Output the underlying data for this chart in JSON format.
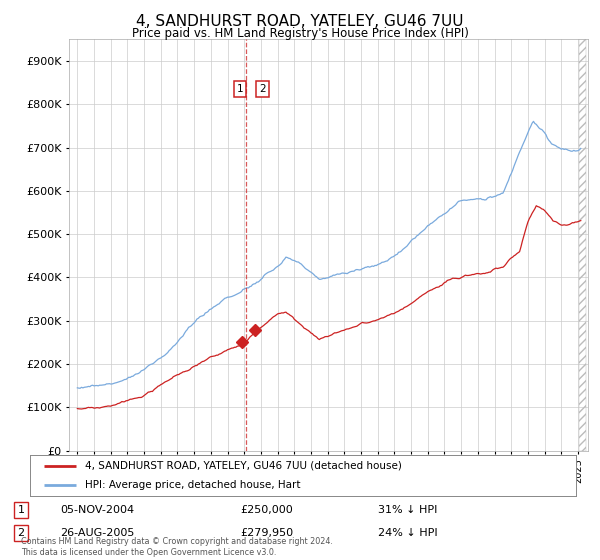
{
  "title": "4, SANDHURST ROAD, YATELEY, GU46 7UU",
  "subtitle": "Price paid vs. HM Land Registry's House Price Index (HPI)",
  "title_fontsize": 11,
  "subtitle_fontsize": 8.5,
  "legend_line1": "4, SANDHURST ROAD, YATELEY, GU46 7UU (detached house)",
  "legend_line2": "HPI: Average price, detached house, Hart",
  "transaction1_date": "05-NOV-2004",
  "transaction1_price": "£250,000",
  "transaction1_hpi": "31% ↓ HPI",
  "transaction1_year": 2004.85,
  "transaction1_value": 250000,
  "transaction2_date": "26-AUG-2005",
  "transaction2_price": "£279,950",
  "transaction2_hpi": "24% ↓ HPI",
  "transaction2_year": 2005.65,
  "transaction2_value": 279950,
  "footer": "Contains HM Land Registry data © Crown copyright and database right 2024.\nThis data is licensed under the Open Government Licence v3.0.",
  "hpi_color": "#7aaadd",
  "price_color": "#cc2222",
  "vline_color": "#cc2222",
  "marker_color": "#cc2222",
  "background_color": "#ffffff",
  "grid_color": "#cccccc",
  "ylim": [
    0,
    950000
  ],
  "yticks": [
    0,
    100000,
    200000,
    300000,
    400000,
    500000,
    600000,
    700000,
    800000,
    900000
  ],
  "ytick_labels": [
    "£0",
    "£100K",
    "£200K",
    "£300K",
    "£400K",
    "£500K",
    "£600K",
    "£700K",
    "£800K",
    "£900K"
  ],
  "vline_x": 2005.1,
  "hatch_right": true
}
